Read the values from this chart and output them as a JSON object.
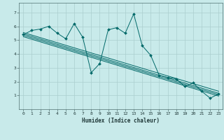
{
  "bg_color": "#c8eaea",
  "grid_color": "#aacece",
  "line_color": "#006868",
  "xlabel": "Humidex (Indice chaleur)",
  "xlim": [
    -0.5,
    23.5
  ],
  "ylim": [
    0,
    7.7
  ],
  "xticks": [
    0,
    1,
    2,
    3,
    4,
    5,
    6,
    7,
    8,
    9,
    10,
    11,
    12,
    13,
    14,
    15,
    16,
    17,
    18,
    19,
    20,
    21,
    22,
    23
  ],
  "yticks": [
    1,
    2,
    3,
    4,
    5,
    6,
    7
  ],
  "series": [
    {
      "x": [
        0,
        1,
        2,
        3,
        4,
        5,
        6,
        7,
        8,
        9,
        10,
        11,
        12,
        13,
        14,
        15,
        16,
        17,
        18,
        19,
        20,
        21,
        22,
        23
      ],
      "y": [
        5.4,
        5.7,
        5.8,
        6.0,
        5.5,
        5.1,
        6.2,
        5.2,
        2.65,
        3.3,
        5.75,
        5.9,
        5.5,
        6.9,
        4.6,
        3.9,
        2.45,
        2.3,
        2.2,
        1.65,
        1.9,
        1.3,
        0.8,
        1.1
      ]
    },
    {
      "x": [
        0,
        23
      ],
      "y": [
        5.55,
        1.3
      ]
    },
    {
      "x": [
        0,
        23
      ],
      "y": [
        5.45,
        1.15
      ]
    },
    {
      "x": [
        0,
        23
      ],
      "y": [
        5.35,
        1.05
      ]
    },
    {
      "x": [
        0,
        23
      ],
      "y": [
        5.25,
        0.95
      ]
    }
  ]
}
